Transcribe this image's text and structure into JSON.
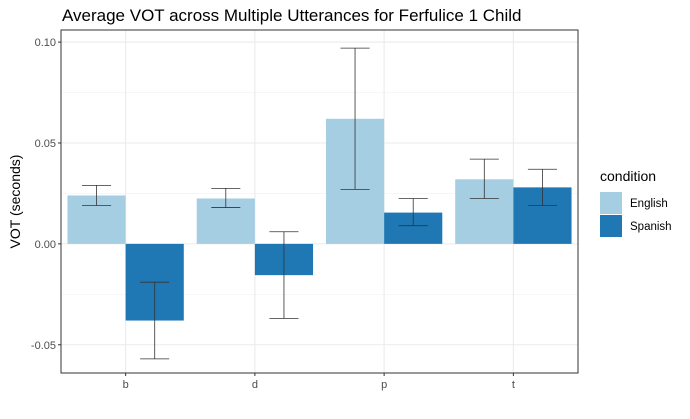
{
  "chart_data": {
    "type": "bar",
    "title": "Average VOT across Multiple Utterances for Ferfulice 1 Child",
    "xlabel": "",
    "ylabel": "VOT (seconds)",
    "categories": [
      "b",
      "d",
      "p",
      "t"
    ],
    "ylim": [
      -0.064,
      0.106
    ],
    "yticks": [
      -0.05,
      0.0,
      0.05,
      0.1
    ],
    "ytick_labels": [
      "-0.05",
      "0.00",
      "0.05",
      "0.10"
    ],
    "grid": true,
    "legend": {
      "title": "condition",
      "placement": "right"
    },
    "series": [
      {
        "name": "English",
        "color": "#a6cee3",
        "values": [
          0.024,
          0.0225,
          0.062,
          0.032
        ],
        "err_low": [
          0.019,
          0.018,
          0.027,
          0.0225
        ],
        "err_high": [
          0.029,
          0.0275,
          0.097,
          0.042
        ]
      },
      {
        "name": "Spanish",
        "color": "#1f78b4",
        "values": [
          -0.038,
          -0.0155,
          0.0155,
          0.028
        ],
        "err_low": [
          -0.057,
          -0.037,
          0.009,
          0.019
        ],
        "err_high": [
          -0.019,
          0.006,
          0.0225,
          0.037
        ]
      }
    ]
  }
}
